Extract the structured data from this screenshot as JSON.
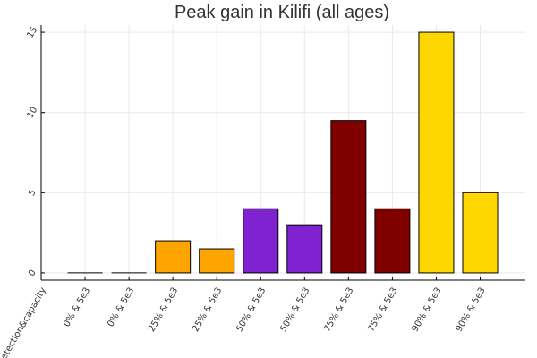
{
  "chart_data": {
    "type": "bar",
    "title": "Peak gain in Kilifi (all ages)",
    "xlabel": "",
    "ylabel": "",
    "categories": [
      "detection&capacity",
      "0% & 5e3",
      "0% & 5e3",
      "25% & 5e3",
      "25% & 5e3",
      "50% & 5e3",
      "50% & 5e3",
      "75% & 5e3",
      "75% & 5e3",
      "90% & 5e3",
      "90% & 5e3"
    ],
    "values": [
      null,
      0,
      0,
      2.0,
      1.5,
      4.0,
      3.0,
      9.5,
      4.0,
      15.0,
      5.0
    ],
    "colors": [
      null,
      "#000000",
      "#000000",
      "#FFA500",
      "#FFA500",
      "#7F22CF",
      "#7F22CF",
      "#800000",
      "#800000",
      "#FFD700",
      "#FFD700"
    ],
    "yticks": [
      0,
      5,
      10,
      15
    ],
    "ylim": [
      -0.45,
      15.45
    ],
    "grid": true,
    "legend": "none"
  }
}
